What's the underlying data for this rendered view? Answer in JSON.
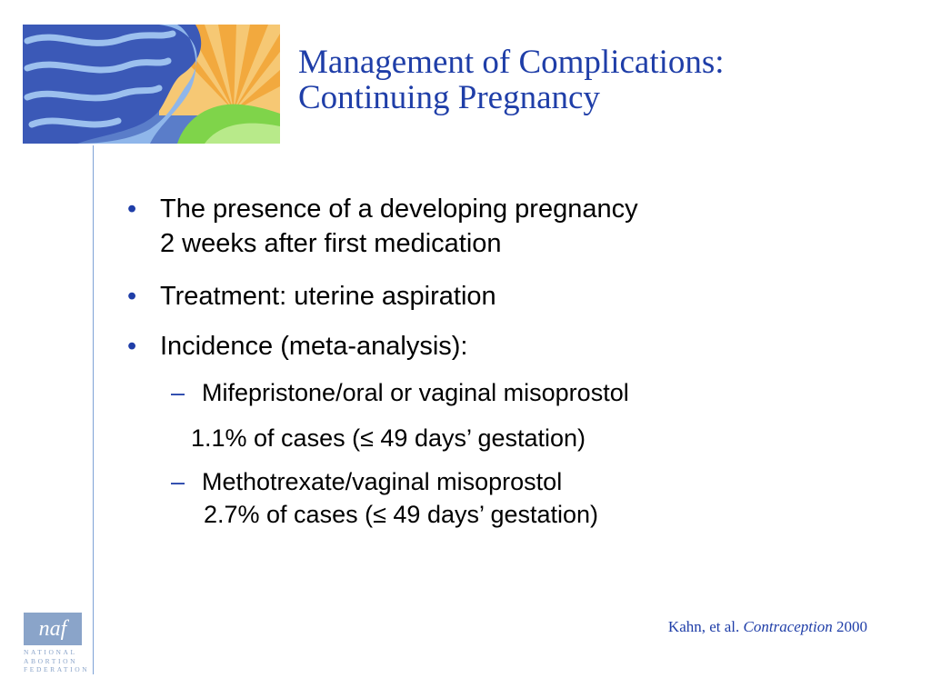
{
  "slide": {
    "title_line1": "Management of Complications:",
    "title_line2": "Continuing Pregnancy",
    "bullets": [
      {
        "lines": [
          "The presence of a developing pregnancy",
          "2 weeks after first medication"
        ]
      },
      {
        "lines": [
          "Treatment: uterine aspiration"
        ]
      },
      {
        "lines": [
          "Incidence (meta-analysis):"
        ]
      }
    ],
    "sub_bullets": [
      {
        "lines": [
          "Mifepristone/oral or vaginal misoprostol"
        ]
      },
      {
        "lines": [
          "Methotrexate/vaginal misoprostol",
          "2.7% of cases (≤ 49 days’ gestation)"
        ]
      }
    ],
    "sub_note": "1.1% of cases (≤ 49 days’ gestation)",
    "citation": {
      "authors": "Kahn, et al.",
      "journal": "Contraception",
      "year": "2000"
    }
  },
  "logo": {
    "mark": "naf",
    "line1": "NATIONAL",
    "line2": "ABORTION",
    "line3": "FEDERATION"
  },
  "colors": {
    "title": "#1f3ea8",
    "accent_line": "#7fa2d6",
    "logo": "#8aa4c9"
  }
}
